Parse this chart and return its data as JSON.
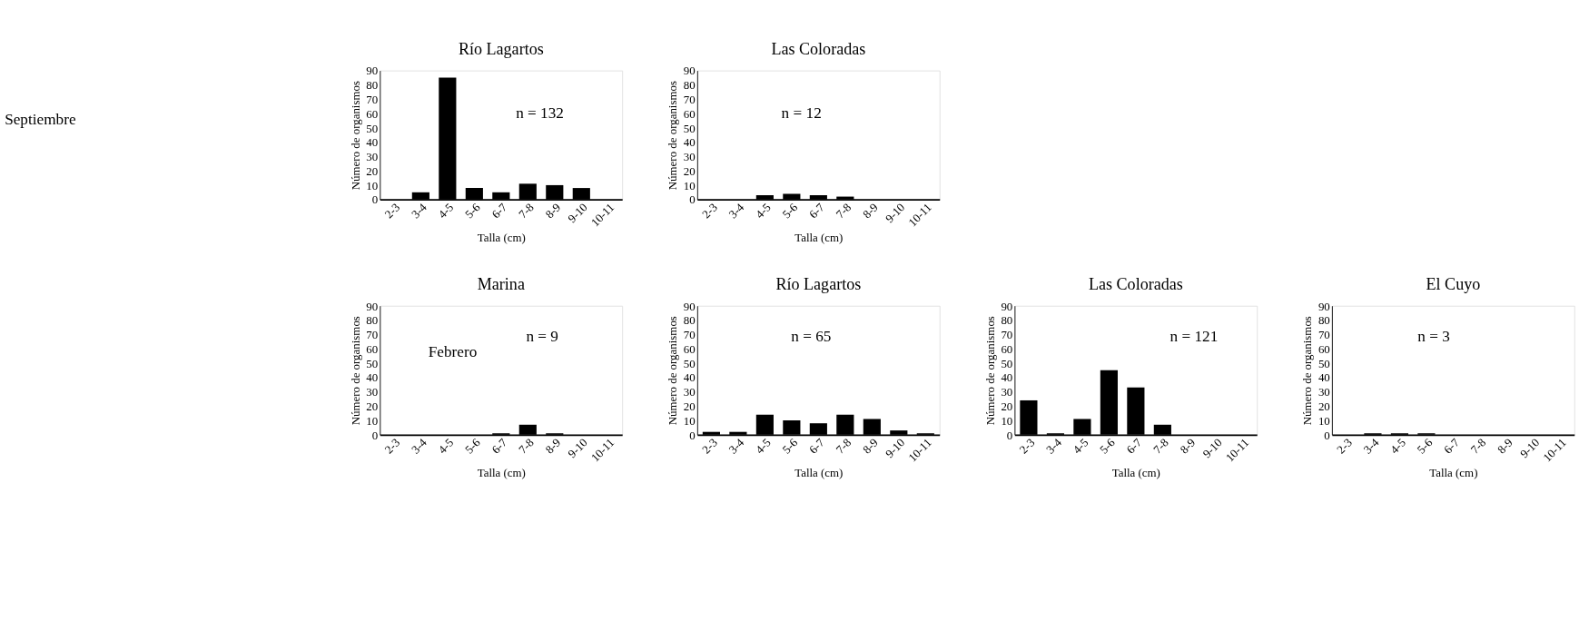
{
  "chart_data": [
    {
      "type": "bar",
      "title": "Río Lagartos",
      "categories": [
        "2-3",
        "3-4",
        "4-5",
        "5-6",
        "6-7",
        "7-8",
        "8-9",
        "9-10",
        "10-11"
      ],
      "values": [
        0,
        5,
        85,
        8,
        5,
        11,
        10,
        8,
        0
      ],
      "color": "#000000",
      "xlabel": "Talla (cm)",
      "ylabel": "Número de organismos",
      "ylim": [
        0,
        90
      ],
      "yticks": [
        0,
        10,
        20,
        30,
        40,
        50,
        60,
        70,
        80,
        90
      ],
      "annotations": [
        "Septiembre",
        "n = 132"
      ]
    },
    {
      "type": "bar",
      "title": "Las Coloradas",
      "categories": [
        "2-3",
        "3-4",
        "4-5",
        "5-6",
        "6-7",
        "7-8",
        "8-9",
        "9-10",
        "10-11"
      ],
      "values": [
        0,
        0,
        3,
        4,
        3,
        2,
        0,
        0,
        0
      ],
      "color": "#000000",
      "xlabel": "Talla (cm)",
      "ylabel": "Número de organismos",
      "ylim": [
        0,
        90
      ],
      "yticks": [
        0,
        10,
        20,
        30,
        40,
        50,
        60,
        70,
        80,
        90
      ],
      "annotations": [
        "n = 12"
      ]
    },
    {
      "type": "bar",
      "title": "Marina",
      "categories": [
        "2-3",
        "3-4",
        "4-5",
        "5-6",
        "6-7",
        "7-8",
        "8-9",
        "9-10",
        "10-11"
      ],
      "values": [
        0,
        0,
        0,
        0,
        1,
        7,
        1,
        0,
        0
      ],
      "color": "#000000",
      "xlabel": "Talla (cm)",
      "ylabel": "Número de organismos",
      "ylim": [
        0,
        90
      ],
      "yticks": [
        0,
        10,
        20,
        30,
        40,
        50,
        60,
        70,
        80,
        90
      ],
      "annotations": [
        "n = 9",
        "Febrero"
      ]
    },
    {
      "type": "bar",
      "title": "Río Lagartos",
      "categories": [
        "2-3",
        "3-4",
        "4-5",
        "5-6",
        "6-7",
        "7-8",
        "8-9",
        "9-10",
        "10-11"
      ],
      "values": [
        2,
        2,
        14,
        10,
        8,
        14,
        11,
        3,
        1
      ],
      "color": "#000000",
      "xlabel": "Talla (cm)",
      "ylabel": "Número de organismos",
      "ylim": [
        0,
        90
      ],
      "yticks": [
        0,
        10,
        20,
        30,
        40,
        50,
        60,
        70,
        80,
        90
      ],
      "annotations": [
        "n = 65"
      ]
    },
    {
      "type": "bar",
      "title": "Las Coloradas",
      "categories": [
        "2-3",
        "3-4",
        "4-5",
        "5-6",
        "6-7",
        "7-8",
        "8-9",
        "9-10",
        "10-11"
      ],
      "values": [
        24,
        1,
        11,
        45,
        33,
        7,
        0,
        0,
        0
      ],
      "color": "#000000",
      "xlabel": "Talla (cm)",
      "ylabel": "Número de organismos",
      "ylim": [
        0,
        90
      ],
      "yticks": [
        0,
        10,
        20,
        30,
        40,
        50,
        60,
        70,
        80,
        90
      ],
      "annotations": [
        "n = 121"
      ]
    },
    {
      "type": "bar",
      "title": "El Cuyo",
      "categories": [
        "2-3",
        "3-4",
        "4-5",
        "5-6",
        "6-7",
        "7-8",
        "8-9",
        "9-10",
        "10-11"
      ],
      "values": [
        0,
        1,
        1,
        1,
        0,
        0,
        0,
        0,
        0
      ],
      "color": "#000000",
      "xlabel": "Talla (cm)",
      "ylabel": "Número de organismos",
      "ylim": [
        0,
        90
      ],
      "yticks": [
        0,
        10,
        20,
        30,
        40,
        50,
        60,
        70,
        80,
        90
      ],
      "annotations": [
        "n = 3"
      ]
    }
  ]
}
